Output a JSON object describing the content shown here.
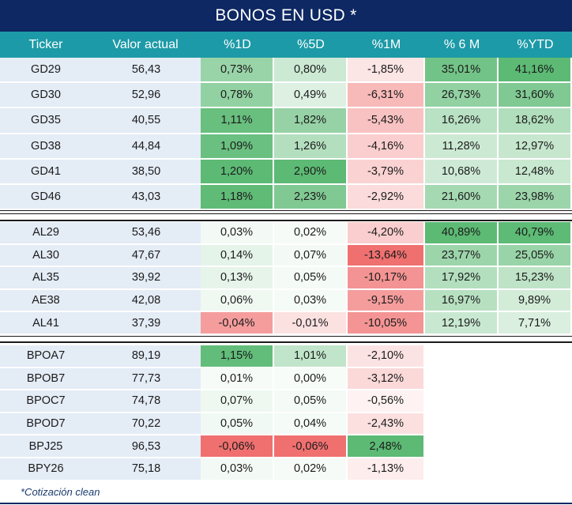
{
  "title": "BONOS EN USD *",
  "headers": [
    "Ticker",
    "Valor actual",
    "%1D",
    "%5D",
    "%1M",
    "% 6 M",
    "%YTD"
  ],
  "groups": [
    {
      "rows": [
        {
          "ticker": "GD29",
          "valor": "56,43",
          "d1": "0,73%",
          "d5": "0,80%",
          "m1": "-1,85%",
          "m6": "35,01%",
          "ytd": "41,16%"
        },
        {
          "ticker": "GD30",
          "valor": "52,96",
          "d1": "0,78%",
          "d5": "0,49%",
          "m1": "-6,31%",
          "m6": "26,73%",
          "ytd": "31,60%"
        },
        {
          "ticker": "GD35",
          "valor": "40,55",
          "d1": "1,11%",
          "d5": "1,82%",
          "m1": "-5,43%",
          "m6": "16,26%",
          "ytd": "18,62%"
        },
        {
          "ticker": "GD38",
          "valor": "44,84",
          "d1": "1,09%",
          "d5": "1,26%",
          "m1": "-4,16%",
          "m6": "11,28%",
          "ytd": "12,97%"
        },
        {
          "ticker": "GD41",
          "valor": "38,50",
          "d1": "1,20%",
          "d5": "2,90%",
          "m1": "-3,79%",
          "m6": "10,68%",
          "ytd": "12,48%"
        },
        {
          "ticker": "GD46",
          "valor": "43,03",
          "d1": "1,18%",
          "d5": "2,23%",
          "m1": "-2,92%",
          "m6": "21,60%",
          "ytd": "23,98%"
        }
      ]
    },
    {
      "rows": [
        {
          "ticker": "AL29",
          "valor": "53,46",
          "d1": "0,03%",
          "d5": "0,02%",
          "m1": "-4,20%",
          "m6": "40,89%",
          "ytd": "40,79%"
        },
        {
          "ticker": "AL30",
          "valor": "47,67",
          "d1": "0,14%",
          "d5": "0,07%",
          "m1": "-13,64%",
          "m6": "23,77%",
          "ytd": "25,05%"
        },
        {
          "ticker": "AL35",
          "valor": "39,92",
          "d1": "0,13%",
          "d5": "0,05%",
          "m1": "-10,17%",
          "m6": "17,92%",
          "ytd": "15,23%"
        },
        {
          "ticker": "AE38",
          "valor": "42,08",
          "d1": "0,06%",
          "d5": "0,03%",
          "m1": "-9,15%",
          "m6": "16,97%",
          "ytd": "9,89%"
        },
        {
          "ticker": "AL41",
          "valor": "37,39",
          "d1": "-0,04%",
          "d5": "-0,01%",
          "m1": "-10,05%",
          "m6": "12,19%",
          "ytd": "7,71%"
        }
      ]
    },
    {
      "rows": [
        {
          "ticker": "BPOA7",
          "valor": "89,19",
          "d1": "1,15%",
          "d5": "1,01%",
          "m1": "-2,10%",
          "m6": "",
          "ytd": ""
        },
        {
          "ticker": "BPOB7",
          "valor": "77,73",
          "d1": "0,01%",
          "d5": "0,00%",
          "m1": "-3,12%",
          "m6": "",
          "ytd": ""
        },
        {
          "ticker": "BPOC7",
          "valor": "74,78",
          "d1": "0,07%",
          "d5": "0,05%",
          "m1": "-0,56%",
          "m6": "",
          "ytd": ""
        },
        {
          "ticker": "BPOD7",
          "valor": "70,22",
          "d1": "0,05%",
          "d5": "0,04%",
          "m1": "-2,43%",
          "m6": "",
          "ytd": ""
        },
        {
          "ticker": "BPJ25",
          "valor": "96,53",
          "d1": "-0,06%",
          "d5": "-0,06%",
          "m1": "2,48%",
          "m6": "",
          "ytd": ""
        },
        {
          "ticker": "BPY26",
          "valor": "75,18",
          "d1": "0,03%",
          "d5": "0,02%",
          "m1": "-1,13%",
          "m6": "",
          "ytd": ""
        }
      ]
    }
  ],
  "footnote": "*Cotización clean",
  "colors": {
    "title_bg": "#0d2862",
    "header_bg": "#1d9aa7",
    "ticker_bg": "#e4ecf6",
    "positive": "#5cba74",
    "negative": "#f07070"
  }
}
